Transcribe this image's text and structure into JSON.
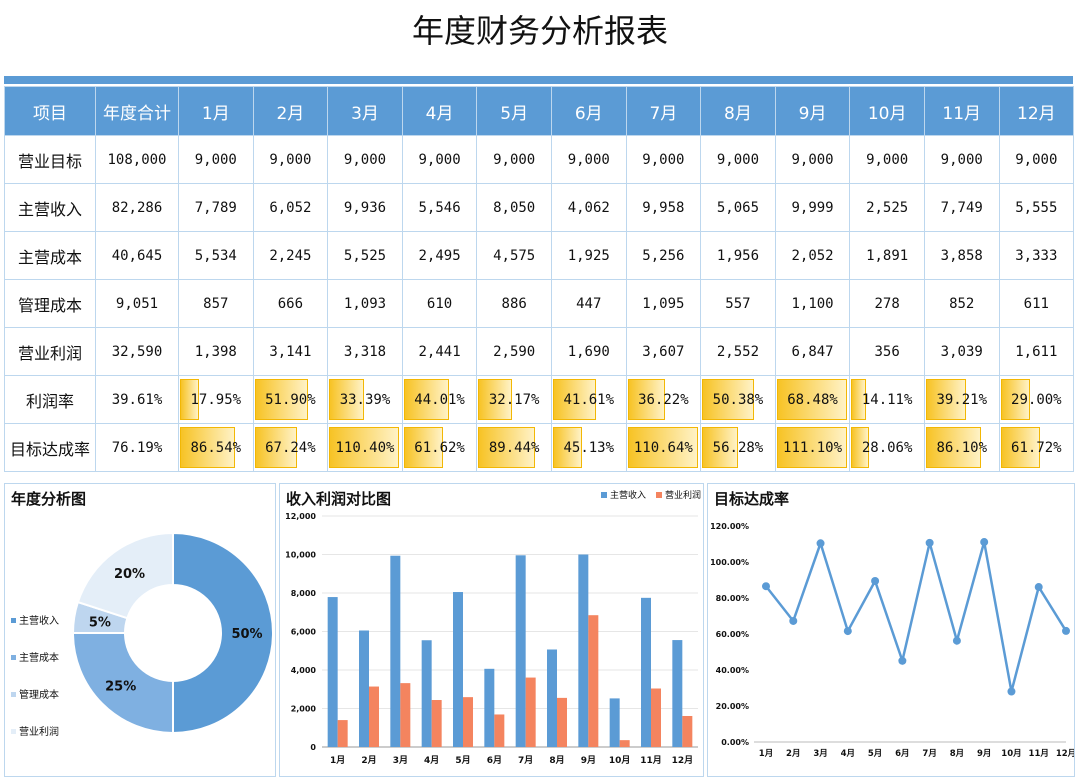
{
  "title": "年度财务分析报表",
  "table": {
    "headers": [
      "项目",
      "年度合计",
      "1月",
      "2月",
      "3月",
      "4月",
      "5月",
      "6月",
      "7月",
      "8月",
      "9月",
      "10月",
      "11月",
      "12月"
    ],
    "rows": [
      {
        "label": "营业目标",
        "cells": [
          "108,000",
          "9,000",
          "9,000",
          "9,000",
          "9,000",
          "9,000",
          "9,000",
          "9,000",
          "9,000",
          "9,000",
          "9,000",
          "9,000",
          "9,000"
        ]
      },
      {
        "label": "主营收入",
        "cells": [
          "82,286",
          "7,789",
          "6,052",
          "9,936",
          "5,546",
          "8,050",
          "4,062",
          "9,958",
          "5,065",
          "9,999",
          "2,525",
          "7,749",
          "5,555"
        ]
      },
      {
        "label": "主营成本",
        "cells": [
          "40,645",
          "5,534",
          "2,245",
          "5,525",
          "2,495",
          "4,575",
          "1,925",
          "5,256",
          "1,956",
          "2,052",
          "1,891",
          "3,858",
          "3,333"
        ]
      },
      {
        "label": "管理成本",
        "cells": [
          "9,051",
          "857",
          "666",
          "1,093",
          "610",
          "886",
          "447",
          "1,095",
          "557",
          "1,100",
          "278",
          "852",
          "611"
        ]
      },
      {
        "label": "营业利润",
        "cells": [
          "32,590",
          "1,398",
          "3,141",
          "3,318",
          "2,441",
          "2,590",
          "1,690",
          "3,607",
          "2,552",
          "6,847",
          "356",
          "3,039",
          "1,611"
        ]
      }
    ],
    "bar_rows": [
      {
        "label": "利润率",
        "cells": [
          "39.61%",
          "17.95%",
          "51.90%",
          "33.39%",
          "44.01%",
          "32.17%",
          "41.61%",
          "36.22%",
          "50.38%",
          "68.48%",
          "14.11%",
          "39.21%",
          "29.00%"
        ],
        "fill": [
          0.3961,
          0.1795,
          0.519,
          0.3339,
          0.4401,
          0.3217,
          0.4161,
          0.3622,
          0.5038,
          0.6848,
          0.1411,
          0.3921,
          0.29
        ]
      },
      {
        "label": "目标达成率",
        "cells": [
          "76.19%",
          "86.54%",
          "67.24%",
          "110.40%",
          "61.62%",
          "89.44%",
          "45.13%",
          "110.64%",
          "56.28%",
          "111.10%",
          "28.06%",
          "86.10%",
          "61.72%"
        ],
        "fill": [
          0.7619,
          0.8654,
          0.6724,
          1.104,
          0.6162,
          0.8944,
          0.4513,
          1.1064,
          0.5628,
          1.111,
          0.2806,
          0.861,
          0.6172
        ]
      }
    ]
  },
  "panels": {
    "pie_title": "年度分析图",
    "bar_title": "收入利润对比图",
    "line_title": "目标达成率"
  },
  "chart_data": [
    {
      "type": "pie",
      "title": "年度分析图",
      "categories": [
        "主营收入",
        "主营成本",
        "管理成本",
        "营业利润"
      ],
      "values": [
        50,
        25,
        5,
        20
      ],
      "labels": [
        "50%",
        "25%",
        "5%",
        "20%"
      ],
      "colors": [
        "#5B9BD5",
        "#7FB0E1",
        "#BED6EF",
        "#E4EEF8"
      ],
      "legend": "left"
    },
    {
      "type": "bar",
      "title": "收入利润对比图",
      "categories": [
        "1月",
        "2月",
        "3月",
        "4月",
        "5月",
        "6月",
        "7月",
        "8月",
        "9月",
        "10月",
        "11月",
        "12月"
      ],
      "series": [
        {
          "name": "主营收入",
          "values": [
            7789,
            6052,
            9936,
            5546,
            8050,
            4062,
            9958,
            5065,
            9999,
            2525,
            7749,
            5555
          ],
          "color": "#5B9BD5"
        },
        {
          "name": "营业利润",
          "values": [
            1398,
            3141,
            3318,
            2441,
            2590,
            1690,
            3607,
            2552,
            6847,
            356,
            3039,
            1611
          ],
          "color": "#F4845F"
        }
      ],
      "yticks": [
        "0",
        "2,000",
        "4,000",
        "6,000",
        "8,000",
        "10,000",
        "12,000"
      ],
      "ylim": [
        0,
        12000
      ],
      "legend": "top-right",
      "legend_labels": [
        "主营收入",
        "营业利润"
      ]
    },
    {
      "type": "line",
      "title": "目标达成率",
      "categories": [
        "1月",
        "2月",
        "3月",
        "4月",
        "5月",
        "6月",
        "7月",
        "8月",
        "9月",
        "10月",
        "11月",
        "12月"
      ],
      "values": [
        86.54,
        67.24,
        110.4,
        61.62,
        89.44,
        45.13,
        110.64,
        56.28,
        111.1,
        28.06,
        86.1,
        61.72
      ],
      "yticks": [
        "0.00%",
        "20.00%",
        "40.00%",
        "60.00%",
        "80.00%",
        "100.00%",
        "120.00%"
      ],
      "ylim": [
        0,
        120
      ],
      "color": "#5B9BD5"
    }
  ]
}
